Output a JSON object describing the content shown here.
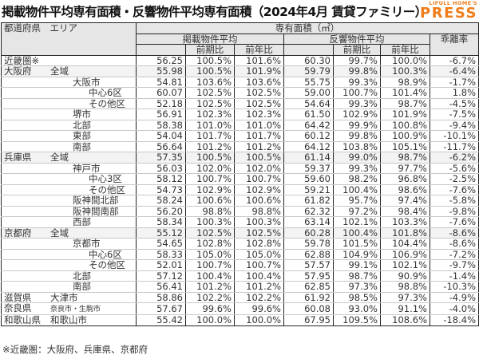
{
  "title": "掲載物件平均専有面積・反響物件平均専有面積（2024年4月 賃貸ファミリー）",
  "logo": {
    "top": "LIFULL HOME'S",
    "main": "PRESS",
    "color": "#ee7d1a"
  },
  "header": {
    "area_col": "都道府県　エリア",
    "group": "専有面積（㎡）",
    "listed": "掲載物件平均",
    "response": "反響物件平均",
    "qoq": "前期比",
    "yoy": "前年比",
    "divergence": "乖離率"
  },
  "rows": [
    {
      "pref": "近畿圏※",
      "area": "",
      "level": 0,
      "listed": "56.25",
      "listed_qoq": "100.5%",
      "listed_yoy": "101.6%",
      "resp": "60.30",
      "resp_qoq": "99.7%",
      "resp_yoy": "100.0%",
      "div": "-6.7%"
    },
    {
      "pref": "大阪府",
      "area": "全域",
      "level": 0,
      "listed": "55.98",
      "listed_qoq": "100.5%",
      "listed_yoy": "101.9%",
      "resp": "59.79",
      "resp_qoq": "99.8%",
      "resp_yoy": "100.3%",
      "div": "-6.4%"
    },
    {
      "pref": "",
      "area": "大阪市",
      "level": 1,
      "listed": "54.81",
      "listed_qoq": "103.6%",
      "listed_yoy": "103.6%",
      "resp": "55.75",
      "resp_qoq": "99.3%",
      "resp_yoy": "98.9%",
      "div": "-1.7%"
    },
    {
      "pref": "",
      "area": "中心6区",
      "level": 2,
      "listed": "60.07",
      "listed_qoq": "102.5%",
      "listed_yoy": "102.5%",
      "resp": "59.00",
      "resp_qoq": "100.7%",
      "resp_yoy": "101.4%",
      "div": "1.8%"
    },
    {
      "pref": "",
      "area": "その他区",
      "level": 2,
      "listed": "52.18",
      "listed_qoq": "102.5%",
      "listed_yoy": "102.5%",
      "resp": "54.64",
      "resp_qoq": "99.3%",
      "resp_yoy": "98.7%",
      "div": "-4.5%"
    },
    {
      "pref": "",
      "area": "堺市",
      "level": 1,
      "listed": "56.91",
      "listed_qoq": "102.3%",
      "listed_yoy": "102.3%",
      "resp": "61.50",
      "resp_qoq": "102.9%",
      "resp_yoy": "101.9%",
      "div": "-7.5%"
    },
    {
      "pref": "",
      "area": "北部",
      "level": 1,
      "listed": "58.38",
      "listed_qoq": "101.0%",
      "listed_yoy": "101.0%",
      "resp": "64.42",
      "resp_qoq": "99.9%",
      "resp_yoy": "100.8%",
      "div": "-9.4%"
    },
    {
      "pref": "",
      "area": "東部",
      "level": 1,
      "listed": "54.04",
      "listed_qoq": "101.7%",
      "listed_yoy": "101.7%",
      "resp": "60.12",
      "resp_qoq": "99.8%",
      "resp_yoy": "100.9%",
      "div": "-10.1%"
    },
    {
      "pref": "",
      "area": "南部",
      "level": 1,
      "listed": "56.64",
      "listed_qoq": "101.2%",
      "listed_yoy": "101.2%",
      "resp": "64.12",
      "resp_qoq": "103.8%",
      "resp_yoy": "105.1%",
      "div": "-11.7%"
    },
    {
      "pref": "兵庫県",
      "area": "全域",
      "level": 0,
      "listed": "57.35",
      "listed_qoq": "100.5%",
      "listed_yoy": "100.5%",
      "resp": "61.14",
      "resp_qoq": "99.0%",
      "resp_yoy": "98.7%",
      "div": "-6.2%"
    },
    {
      "pref": "",
      "area": "神戸市",
      "level": 1,
      "listed": "56.03",
      "listed_qoq": "102.0%",
      "listed_yoy": "102.0%",
      "resp": "59.37",
      "resp_qoq": "99.3%",
      "resp_yoy": "97.7%",
      "div": "-5.6%"
    },
    {
      "pref": "",
      "area": "中心3区",
      "level": 2,
      "listed": "58.12",
      "listed_qoq": "100.7%",
      "listed_yoy": "100.7%",
      "resp": "59.60",
      "resp_qoq": "98.2%",
      "resp_yoy": "96.8%",
      "div": "-2.5%"
    },
    {
      "pref": "",
      "area": "その他区",
      "level": 2,
      "listed": "54.73",
      "listed_qoq": "102.9%",
      "listed_yoy": "102.9%",
      "resp": "59.21",
      "resp_qoq": "100.4%",
      "resp_yoy": "98.6%",
      "div": "-7.6%"
    },
    {
      "pref": "",
      "area": "阪神間北部",
      "level": 1,
      "listed": "58.24",
      "listed_qoq": "100.6%",
      "listed_yoy": "100.6%",
      "resp": "61.82",
      "resp_qoq": "95.7%",
      "resp_yoy": "97.4%",
      "div": "-5.8%"
    },
    {
      "pref": "",
      "area": "阪神間南部",
      "level": 1,
      "listed": "56.20",
      "listed_qoq": "98.8%",
      "listed_yoy": "98.8%",
      "resp": "62.32",
      "resp_qoq": "97.2%",
      "resp_yoy": "98.4%",
      "div": "-9.8%"
    },
    {
      "pref": "",
      "area": "西部",
      "level": 1,
      "listed": "58.34",
      "listed_qoq": "100.3%",
      "listed_yoy": "100.3%",
      "resp": "63.14",
      "resp_qoq": "102.1%",
      "resp_yoy": "103.3%",
      "div": "-7.6%"
    },
    {
      "pref": "京都府",
      "area": "全域",
      "level": 0,
      "listed": "55.12",
      "listed_qoq": "102.5%",
      "listed_yoy": "102.5%",
      "resp": "60.28",
      "resp_qoq": "100.4%",
      "resp_yoy": "101.8%",
      "div": "-8.6%"
    },
    {
      "pref": "",
      "area": "京都市",
      "level": 1,
      "listed": "54.65",
      "listed_qoq": "102.8%",
      "listed_yoy": "102.8%",
      "resp": "59.78",
      "resp_qoq": "101.5%",
      "resp_yoy": "104.4%",
      "div": "-8.6%"
    },
    {
      "pref": "",
      "area": "中心6区",
      "level": 2,
      "listed": "58.33",
      "listed_qoq": "105.0%",
      "listed_yoy": "105.0%",
      "resp": "62.88",
      "resp_qoq": "104.9%",
      "resp_yoy": "106.9%",
      "div": "-7.2%"
    },
    {
      "pref": "",
      "area": "その他区",
      "level": 2,
      "listed": "52.01",
      "listed_qoq": "100.7%",
      "listed_yoy": "100.7%",
      "resp": "57.57",
      "resp_qoq": "99.1%",
      "resp_yoy": "102.1%",
      "div": "-9.7%"
    },
    {
      "pref": "",
      "area": "北部",
      "level": 1,
      "listed": "57.12",
      "listed_qoq": "100.4%",
      "listed_yoy": "100.4%",
      "resp": "57.95",
      "resp_qoq": "98.7%",
      "resp_yoy": "90.9%",
      "div": "-1.4%"
    },
    {
      "pref": "",
      "area": "南部",
      "level": 1,
      "listed": "56.41",
      "listed_qoq": "101.2%",
      "listed_yoy": "101.2%",
      "resp": "62.85",
      "resp_qoq": "97.3%",
      "resp_yoy": "98.8%",
      "div": "-10.3%"
    },
    {
      "pref": "滋賀県",
      "area": "大津市",
      "level": 0,
      "listed": "58.86",
      "listed_qoq": "102.2%",
      "listed_yoy": "102.2%",
      "resp": "61.92",
      "resp_qoq": "98.5%",
      "resp_yoy": "97.3%",
      "div": "-4.9%"
    },
    {
      "pref": "奈良県",
      "area": "奈良市・生駒市",
      "level": 0,
      "listed": "57.67",
      "listed_qoq": "99.6%",
      "listed_yoy": "99.6%",
      "resp": "60.08",
      "resp_qoq": "93.0%",
      "resp_yoy": "91.1%",
      "div": "-4.0%"
    },
    {
      "pref": "和歌山県",
      "area": "和歌山市",
      "level": 0,
      "listed": "55.42",
      "listed_qoq": "100.0%",
      "listed_yoy": "100.0%",
      "resp": "67.95",
      "resp_qoq": "109.5%",
      "resp_yoy": "108.6%",
      "div": "-18.4%"
    }
  ],
  "footnote": "※近畿圏：大阪府、兵庫県、京都府"
}
